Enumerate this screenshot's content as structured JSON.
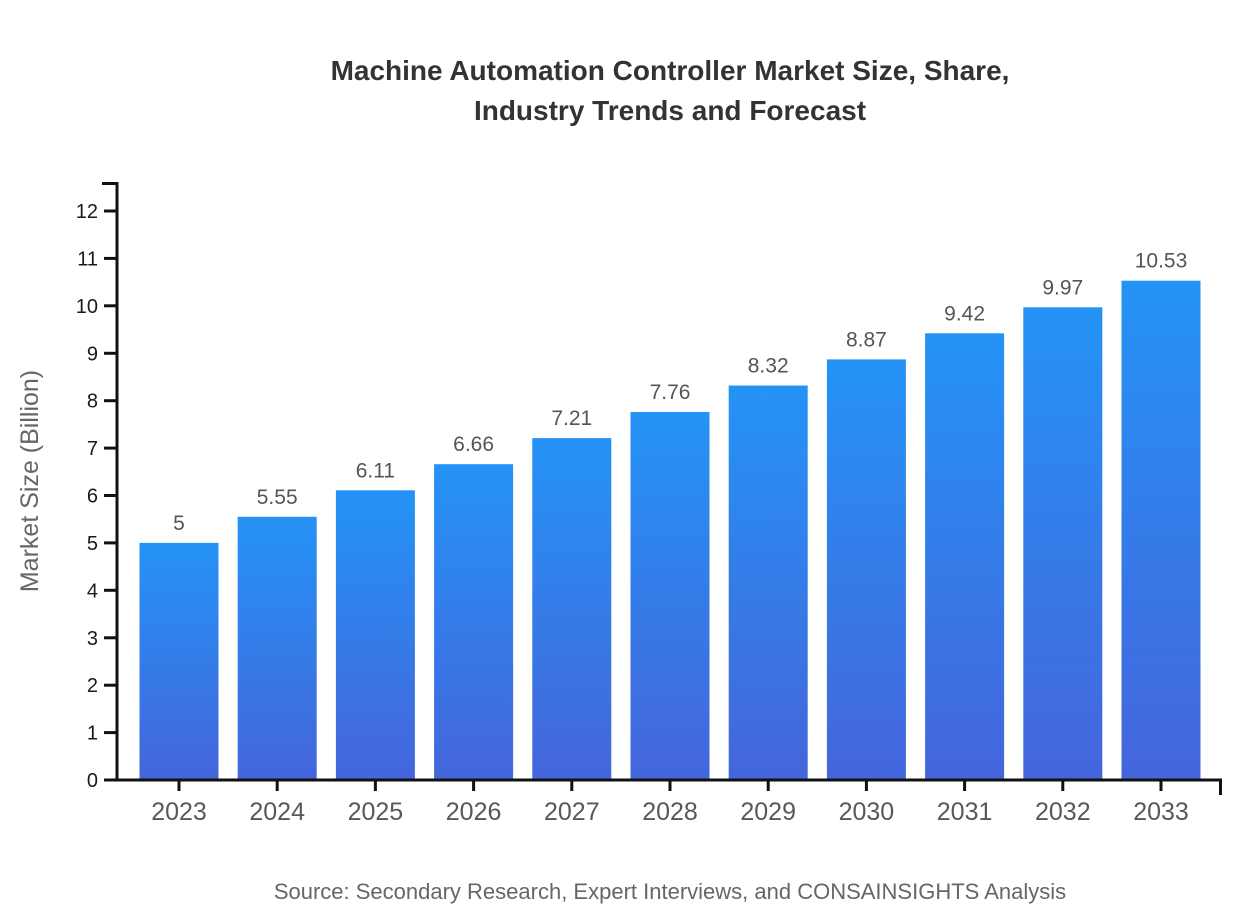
{
  "title": {
    "line1": "Machine Automation Controller Market Size, Share,",
    "line2": "Industry Trends and Forecast"
  },
  "source": "Source: Secondary Research, Expert Interviews, and CONSAINSIGHTS Analysis",
  "chart_data": {
    "type": "bar",
    "title": "Machine Automation Controller Market Size, Share, Industry Trends and Forecast",
    "categories": [
      "2023",
      "2024",
      "2025",
      "2026",
      "2027",
      "2028",
      "2029",
      "2030",
      "2031",
      "2032",
      "2033"
    ],
    "values": [
      5,
      5.55,
      6.11,
      6.66,
      7.21,
      7.76,
      8.32,
      8.87,
      9.42,
      9.97,
      10.53
    ],
    "bar_labels": [
      "5",
      "5.55",
      "6.11",
      "6.66",
      "7.21",
      "7.76",
      "8.32",
      "8.87",
      "9.42",
      "9.97",
      "10.53"
    ],
    "xlabel": "",
    "ylabel": "Market Size (Billion)",
    "ylim": [
      0,
      12
    ],
    "ytick_step": 1,
    "grid": false,
    "legend": false,
    "colors": {
      "bar_gradient_top": "#2493F5",
      "bar_gradient_bottom": "#4565DC",
      "axis": "#111111",
      "y_tick_label": "#1a1a1a",
      "bar_value_label": "#555555",
      "x_tick_label": "#58585a",
      "title": "#333333",
      "muted_text": "#666666"
    }
  }
}
